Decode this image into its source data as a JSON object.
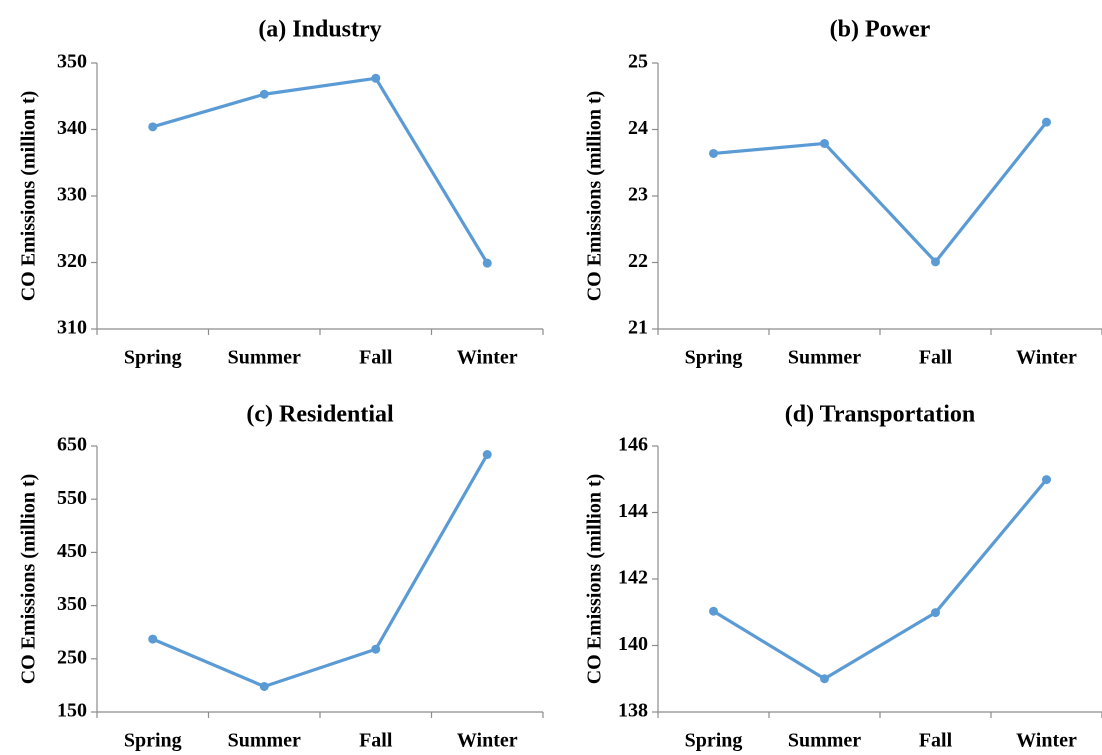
{
  "chart_data": [
    {
      "type": "line",
      "title": "(a) Industry",
      "ylabel": "CO Emissions (million t)",
      "categories": [
        "Spring",
        "Summer",
        "Fall",
        "Winter"
      ],
      "values": [
        340.4,
        345.3,
        347.7,
        319.9
      ],
      "ylim": [
        310,
        350
      ],
      "yticks": [
        310,
        320,
        330,
        340,
        350
      ],
      "grid": false,
      "color": "#5b9bd5"
    },
    {
      "type": "line",
      "title": "(b) Power",
      "ylabel": "CO Emissions (million t)",
      "categories": [
        "Spring",
        "Summer",
        "Fall",
        "Winter"
      ],
      "values": [
        23.64,
        23.79,
        22.01,
        24.11
      ],
      "ylim": [
        21,
        25
      ],
      "yticks": [
        21,
        22,
        23,
        24,
        25
      ],
      "grid": false,
      "color": "#5b9bd5"
    },
    {
      "type": "line",
      "title": "(c) Residential",
      "ylabel": "CO Emissions (million t)",
      "categories": [
        "Spring",
        "Summer",
        "Fall",
        "Winter"
      ],
      "values": [
        287,
        198,
        268,
        634
      ],
      "ylim": [
        150,
        650
      ],
      "yticks": [
        150,
        250,
        350,
        450,
        550,
        650
      ],
      "grid": false,
      "color": "#5b9bd5"
    },
    {
      "type": "line",
      "title": "(d) Transportation",
      "ylabel": "CO Emissions (million t)",
      "categories": [
        "Spring",
        "Summer",
        "Fall",
        "Winter"
      ],
      "values": [
        141.03,
        139.0,
        140.99,
        144.99
      ],
      "ylim": [
        138,
        146
      ],
      "yticks": [
        138,
        140,
        142,
        144,
        146
      ],
      "grid": false,
      "color": "#5b9bd5"
    }
  ]
}
